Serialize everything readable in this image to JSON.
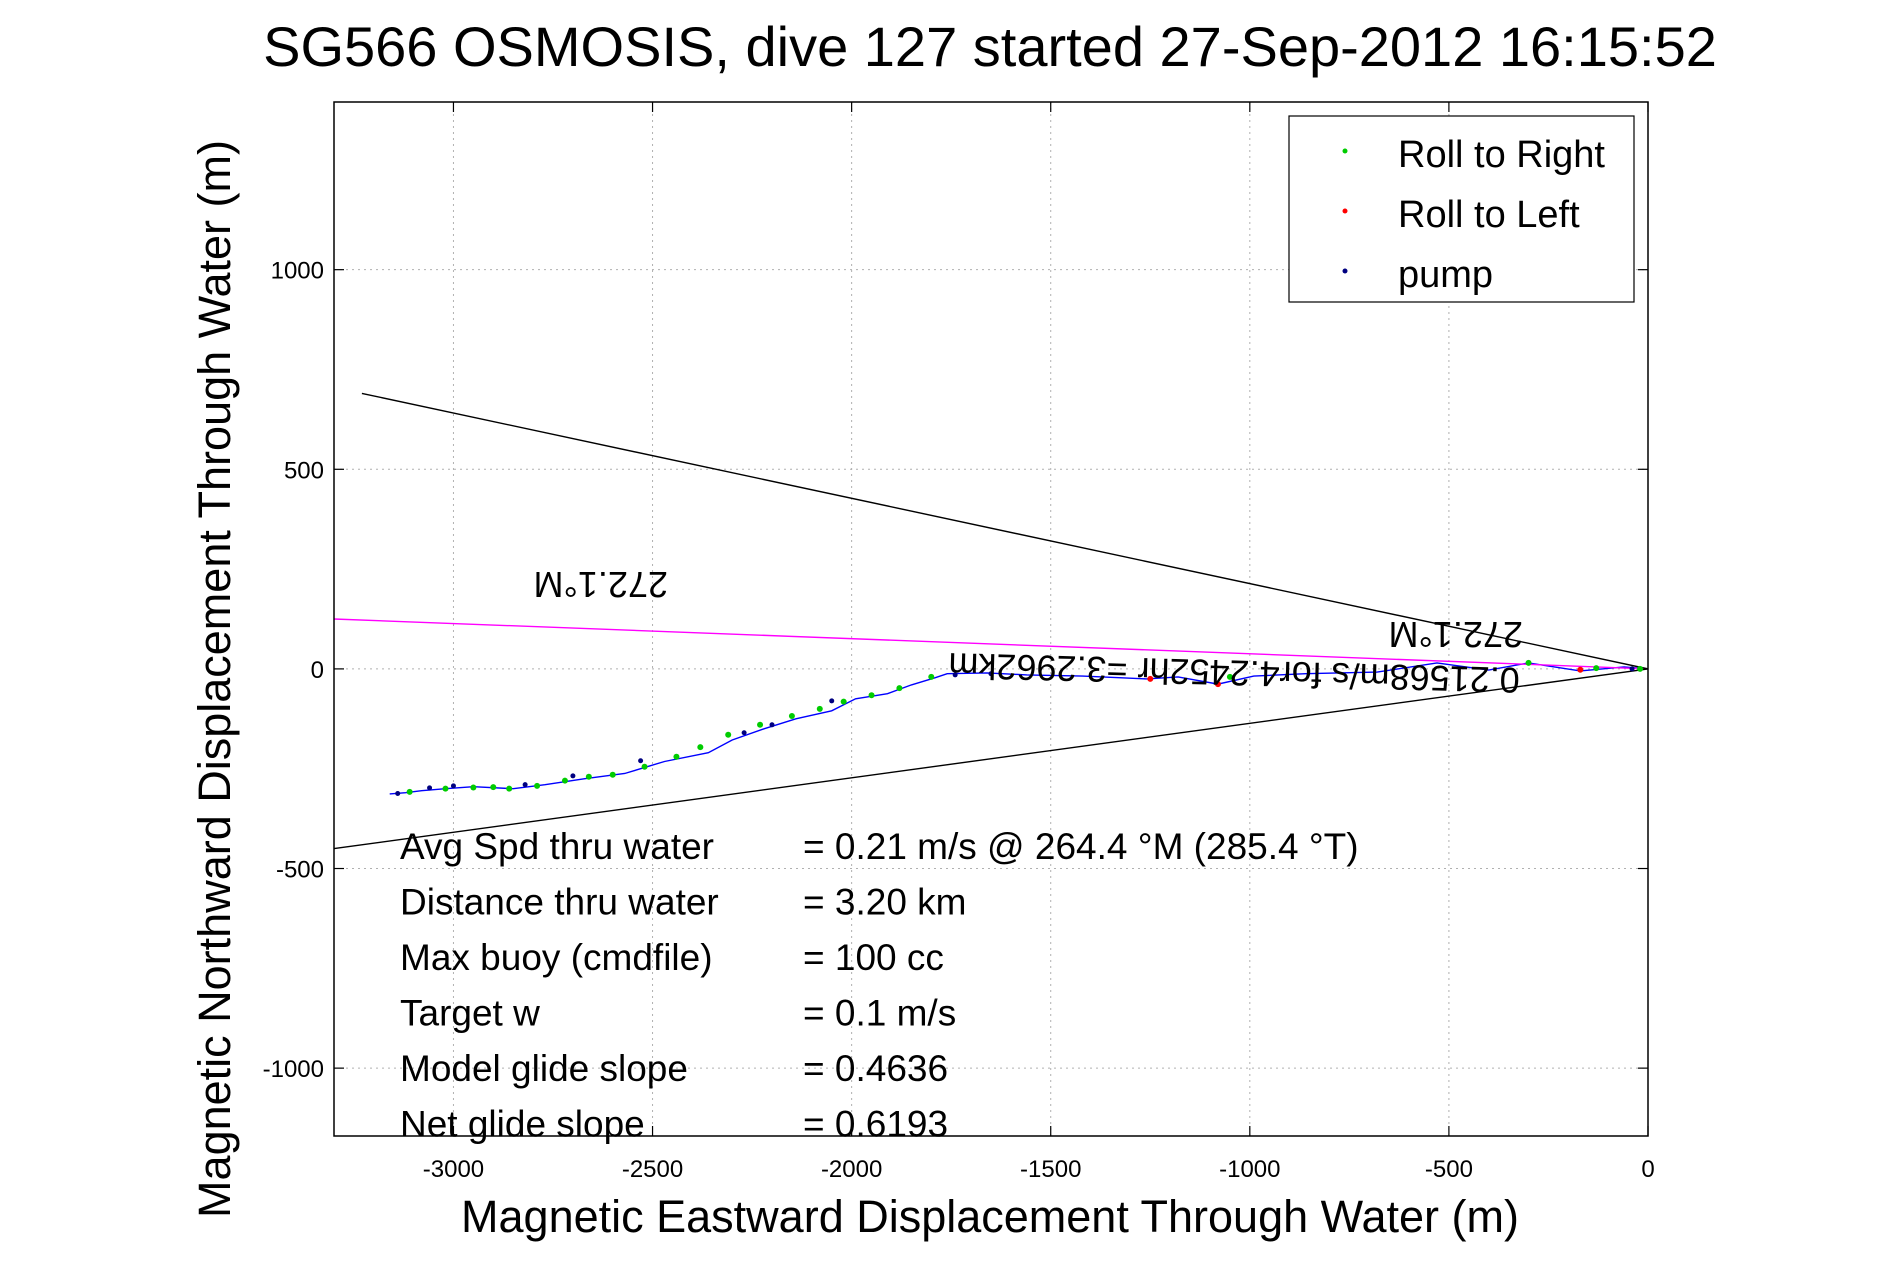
{
  "chart_data": {
    "type": "line",
    "title": "SG566 OSMOSIS, dive 127 started 27-Sep-2012 16:15:52",
    "xlabel": "Magnetic Eastward Displacement Through Water (m)",
    "ylabel": "Magnetic Northward Displacement Through Water (m)",
    "xlim": [
      -3300,
      0
    ],
    "ylim": [
      -1170,
      1420
    ],
    "xticks": [
      -3000,
      -2500,
      -2000,
      -1500,
      -1000,
      -500,
      0
    ],
    "yticks": [
      -1000,
      -500,
      0,
      500,
      1000
    ],
    "grid": true,
    "legend_position": "top-right",
    "legend": [
      {
        "label": "Roll to Right",
        "color": "#00cc00"
      },
      {
        "label": "Roll to Left",
        "color": "#ff0000"
      },
      {
        "label": "pump",
        "color": "#000080"
      }
    ],
    "series": [
      {
        "name": "",
        "color": "#0000ff",
        "x": [
          0,
          -60,
          -170,
          -300,
          -400,
          -530,
          -680,
          -860,
          -990,
          -1080,
          -1180,
          -1260,
          -1420,
          -1560,
          -1660,
          -1760,
          -1790,
          -1850,
          -1910,
          -1990,
          -2050,
          -2140,
          -2220,
          -2300,
          -2360,
          -2470,
          -2570,
          -2670,
          -2770,
          -2850,
          -2950,
          -3020,
          -3080,
          -3120,
          -3160
        ],
        "y": [
          0,
          5,
          -5,
          15,
          -3,
          15,
          -8,
          -12,
          -18,
          -38,
          -20,
          -25,
          -18,
          -15,
          -10,
          -12,
          -22,
          -40,
          -62,
          -75,
          -105,
          -125,
          -150,
          -178,
          -210,
          -232,
          -262,
          -275,
          -290,
          -300,
          -295,
          -300,
          -305,
          -310,
          -313
        ]
      },
      {
        "name": "",
        "color": "#ff00ff",
        "x": [
          0,
          -3300
        ],
        "y": [
          0,
          125
        ]
      },
      {
        "name": "",
        "color": "#000000",
        "x": [
          0,
          -3230
        ],
        "y": [
          0,
          690
        ]
      },
      {
        "name": "",
        "color": "#000000",
        "x": [
          0,
          -3300
        ],
        "y": [
          0,
          -450
        ]
      }
    ],
    "roll_right_points": {
      "x": [
        -20,
        -130,
        -300,
        -1050,
        -1800,
        -1880,
        -1950,
        -2020,
        -2080,
        -2150,
        -2230,
        -2310,
        -2380,
        -2440,
        -2520,
        -2600,
        -2660,
        -2720,
        -2790,
        -2860,
        -2900,
        -2950,
        -3020,
        -3110
      ],
      "y": [
        0,
        2,
        15,
        -20,
        -20,
        -48,
        -66,
        -82,
        -100,
        -118,
        -140,
        -165,
        -196,
        -220,
        -245,
        -265,
        -270,
        -280,
        -293,
        -300,
        -296,
        -297,
        -300,
        -308
      ]
    },
    "roll_left_points": {
      "x": [
        -170,
        -1250,
        -1080
      ],
      "y": [
        -2,
        -25,
        -38
      ]
    },
    "pump_points": {
      "x": [
        -40,
        -1650,
        -1740,
        -2050,
        -2200,
        -2270,
        -2530,
        -2700,
        -2820,
        -3000,
        -3060,
        -3140
      ],
      "y": [
        0,
        -12,
        -15,
        -80,
        -140,
        -160,
        -230,
        -268,
        -290,
        -293,
        -298,
        -312
      ]
    },
    "annotations": {
      "speed_label": "0.21568m/s for4.2452hr =3.2962km",
      "heading_label_near": "272.1°M",
      "heading_label_far": "272.1°M"
    },
    "stats": [
      {
        "label": "Avg Spd thru water",
        "value": "=  0.21 m/s @ 264.4 °M (285.4 °T)"
      },
      {
        "label": "Distance thru water",
        "value": "=  3.20 km"
      },
      {
        "label": "Max buoy (cmdfile)",
        "value": "= 100 cc"
      },
      {
        "label": "Target w",
        "value": "= 0.1 m/s"
      },
      {
        "label": "Model glide slope",
        "value": "= 0.4636"
      },
      {
        "label": "Net glide slope",
        "value": "= 0.6193"
      }
    ]
  }
}
